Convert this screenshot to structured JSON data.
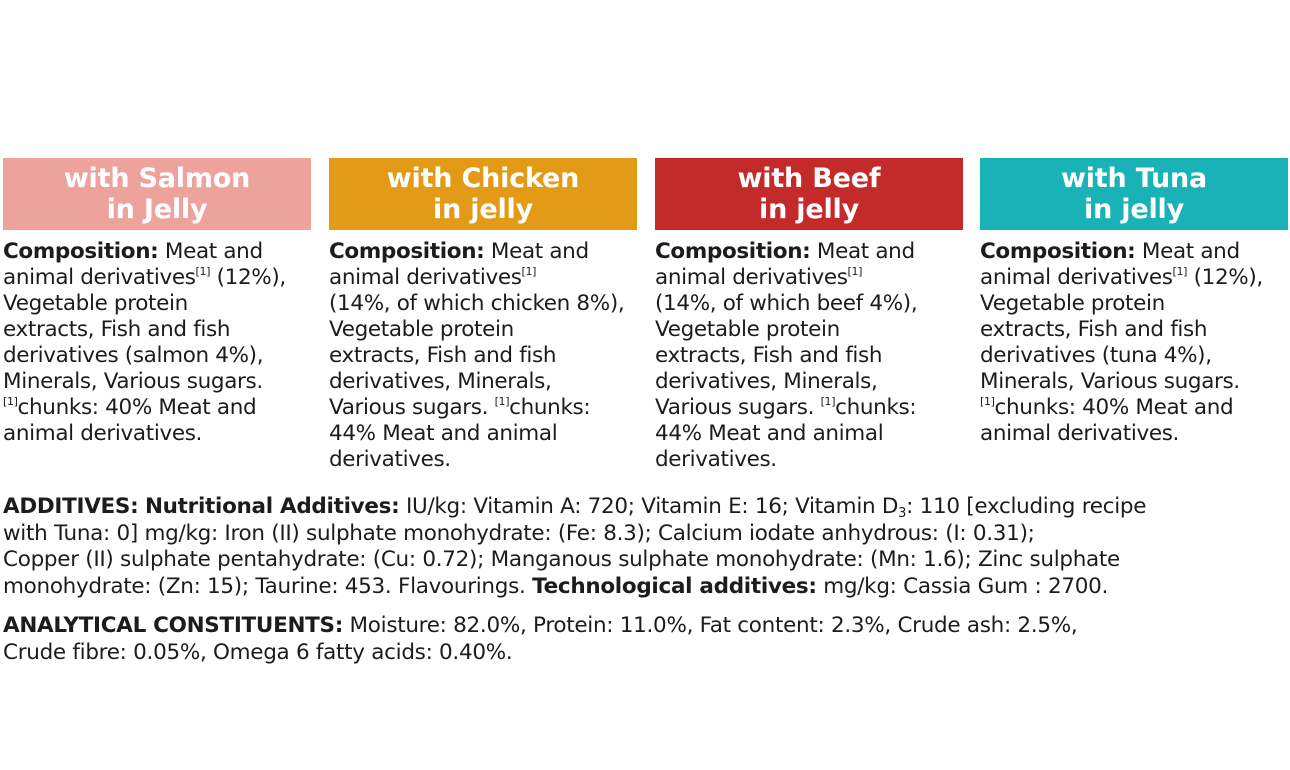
{
  "colors": {
    "salmon": "#eda39c",
    "chicken": "#e39a16",
    "beef": "#c52a2a",
    "tuna": "#19b3b7",
    "text": "#1c1c1c"
  },
  "varieties": [
    {
      "title_line1": "with Salmon",
      "title_line2": "in Jelly",
      "composition_label": "Composition:",
      "lines": [
        {
          "pre": " Meat and"
        },
        {
          "pre": "animal derivatives",
          "sup": "[1]",
          "post": " (12%),"
        },
        {
          "pre": "Vegetable protein"
        },
        {
          "pre": "extracts, Fish and fish"
        },
        {
          "pre": "derivatives (salmon 4%),"
        },
        {
          "pre": "Minerals, Various sugars."
        },
        {
          "pre": "",
          "sup": "[1]",
          "post": "chunks: 40% Meat and"
        },
        {
          "pre": "animal derivatives."
        }
      ]
    },
    {
      "title_line1": "with Chicken",
      "title_line2": "in jelly",
      "composition_label": "Composition:",
      "lines": [
        {
          "pre": " Meat and"
        },
        {
          "pre": "animal derivatives",
          "sup": "[1]"
        },
        {
          "pre": "(14%, of which chicken 8%),"
        },
        {
          "pre": "Vegetable protein"
        },
        {
          "pre": "extracts, Fish and fish"
        },
        {
          "pre": "derivatives, Minerals,"
        },
        {
          "pre": "Various sugars. ",
          "sup": "[1]",
          "post": "chunks:"
        },
        {
          "pre": "44% Meat and animal"
        },
        {
          "pre": "derivatives."
        }
      ]
    },
    {
      "title_line1": "with Beef",
      "title_line2": "in jelly",
      "composition_label": "Composition:",
      "lines": [
        {
          "pre": " Meat and"
        },
        {
          "pre": "animal derivatives",
          "sup": "[1]"
        },
        {
          "pre": "(14%, of which beef 4%),"
        },
        {
          "pre": "Vegetable protein"
        },
        {
          "pre": "extracts, Fish and fish"
        },
        {
          "pre": "derivatives, Minerals,"
        },
        {
          "pre": "Various sugars. ",
          "sup": "[1]",
          "post": "chunks:"
        },
        {
          "pre": "44% Meat and animal"
        },
        {
          "pre": "derivatives."
        }
      ]
    },
    {
      "title_line1": "with Tuna",
      "title_line2": "in jelly",
      "composition_label": "Composition:",
      "lines": [
        {
          "pre": " Meat and"
        },
        {
          "pre": "animal derivatives",
          "sup": "[1]",
          "post": " (12%),"
        },
        {
          "pre": "Vegetable protein"
        },
        {
          "pre": "extracts, Fish and fish"
        },
        {
          "pre": "derivatives (tuna 4%),"
        },
        {
          "pre": "Minerals, Various sugars."
        },
        {
          "pre": "",
          "sup": "[1]",
          "post": "chunks: 40% Meat and"
        },
        {
          "pre": "animal derivatives."
        }
      ]
    }
  ],
  "additives": {
    "label": "ADDITIVES:",
    "nutritional_label": "Nutritional Additives:",
    "text1_a": " IU/kg: Vitamin A: 720; Vitamin E: 16; Vitamin D",
    "d_sub": "3",
    "text1_b": ": 110 [excluding recipe",
    "line2": "with Tuna: 0] mg/kg: Iron (II) sulphate monohydrate: (Fe: 8.3); Calcium iodate anhydrous: (I: 0.31);",
    "line3": "Copper (II) sulphate pentahydrate: (Cu: 0.72); Manganous sulphate monohydrate: (Mn: 1.6); Zinc sulphate",
    "line4_a": "monohydrate: (Zn: 15); Taurine: 453. Flavourings. ",
    "technological_label": "Technological additives:",
    "line4_b": " mg/kg: Cassia Gum : 2700."
  },
  "analytical": {
    "label": "ANALYTICAL CONSTITUENTS:",
    "line1": " Moisture: 82.0%, Protein: 11.0%, Fat content: 2.3%, Crude ash: 2.5%,",
    "line2": "Crude fibre: 0.05%, Omega 6 fatty acids: 0.40%."
  }
}
